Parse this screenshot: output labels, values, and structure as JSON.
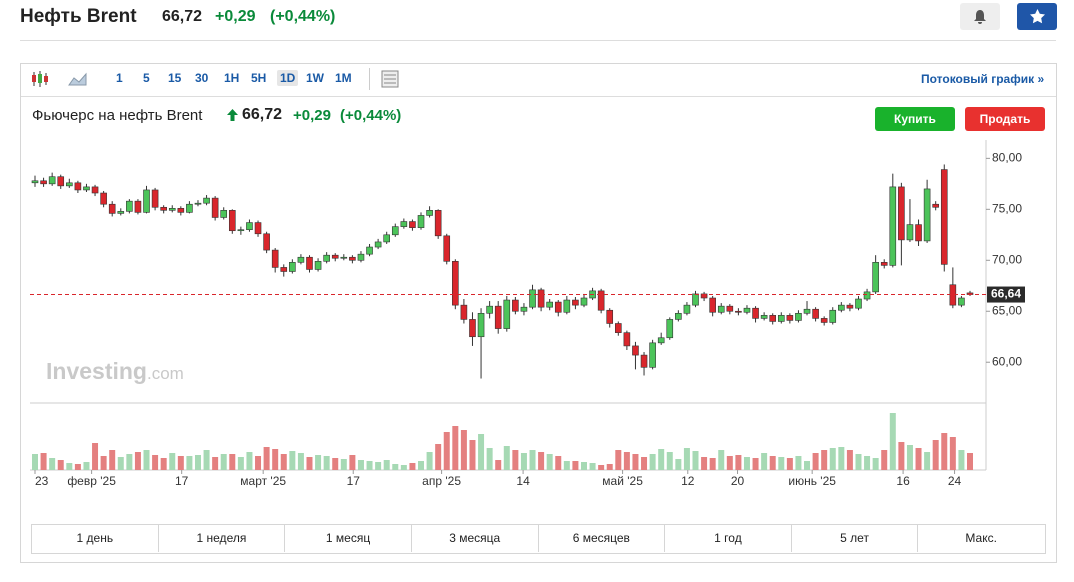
{
  "header": {
    "title": "Нефть Brent",
    "price": "66,72",
    "change": "+0,29",
    "change_pct": "(+0,44%)"
  },
  "toolbar": {
    "intervals": [
      "1",
      "5",
      "15",
      "30",
      "1H",
      "5H",
      "1D",
      "1W",
      "1M"
    ],
    "stream_link": "Потоковый график »"
  },
  "instrument": {
    "name": "Фьючерс на нефть Brent",
    "price": "66,72",
    "change": "+0,29",
    "change_pct": "(+0,44%)",
    "buy": "Купить",
    "sell": "Продать"
  },
  "watermark": {
    "brand": "Investing",
    "suffix": ".com"
  },
  "periods": [
    "1 день",
    "1 неделя",
    "1 месяц",
    "3 месяца",
    "6 месяцев",
    "1 год",
    "5 лет",
    "Макс."
  ],
  "chart_data": {
    "type": "candlestick",
    "open": [
      77.6,
      77.8,
      77.5,
      78.2,
      77.3,
      77.6,
      76.9,
      77.2,
      76.6,
      75.5,
      74.6,
      74.8,
      75.8,
      74.7,
      76.9,
      75.2,
      74.9,
      75.1,
      74.7,
      75.5,
      75.6,
      76.1,
      74.2,
      74.9,
      72.9,
      73.0,
      73.7,
      72.6,
      71.0,
      69.3,
      68.9,
      69.8,
      70.3,
      69.1,
      69.9,
      70.5,
      70.2,
      70.3,
      70.0,
      70.6,
      71.3,
      71.8,
      72.5,
      73.3,
      73.8,
      73.2,
      74.4,
      74.9,
      72.4,
      69.9,
      65.6,
      64.2,
      62.5,
      64.8,
      65.5,
      63.3,
      66.1,
      65.0,
      65.4,
      67.1,
      65.4,
      65.9,
      64.9,
      66.1,
      65.6,
      66.3,
      67.0,
      65.1,
      63.8,
      62.9,
      61.6,
      60.7,
      59.5,
      61.9,
      62.4,
      64.2,
      64.8,
      65.6,
      66.7,
      66.3,
      64.9,
      65.5,
      65.0,
      64.9,
      65.3,
      64.3,
      64.6,
      64.0,
      64.6,
      64.1,
      64.8,
      65.2,
      64.3,
      63.9,
      65.1,
      65.6,
      65.3,
      66.2,
      66.9,
      69.8,
      69.5,
      77.2,
      72.0,
      73.5,
      71.9,
      75.5,
      78.9,
      67.6,
      65.6,
      66.8
    ],
    "high": [
      78.3,
      78.1,
      78.6,
      78.4,
      78.0,
      77.8,
      77.5,
      77.4,
      76.8,
      75.8,
      75.1,
      76.0,
      76.0,
      77.3,
      77.1,
      75.4,
      75.4,
      75.3,
      75.8,
      75.9,
      76.4,
      76.3,
      75.2,
      75.0,
      73.3,
      74.0,
      73.9,
      72.8,
      71.2,
      69.6,
      70.1,
      70.6,
      70.5,
      70.2,
      70.8,
      70.7,
      70.6,
      70.5,
      70.9,
      71.6,
      72.1,
      72.8,
      73.6,
      74.1,
      74.0,
      74.7,
      75.3,
      75.0,
      72.6,
      70.1,
      66.2,
      64.9,
      65.3,
      66.0,
      66.0,
      66.5,
      66.4,
      65.8,
      67.6,
      67.3,
      66.2,
      66.1,
      66.5,
      66.4,
      66.7,
      67.3,
      67.2,
      65.3,
      64.0,
      63.1,
      62.0,
      61.0,
      62.2,
      62.9,
      64.4,
      65.1,
      65.9,
      67.0,
      66.9,
      66.5,
      65.8,
      65.7,
      65.3,
      65.6,
      65.5,
      64.9,
      64.8,
      64.9,
      64.8,
      65.1,
      66.0,
      65.4,
      64.5,
      65.4,
      65.9,
      65.8,
      66.5,
      67.2,
      70.5,
      70.1,
      78.5,
      77.6,
      76.0,
      74.0,
      77.9,
      75.8,
      79.4,
      69.3,
      66.5,
      67.0
    ],
    "low": [
      77.2,
      77.2,
      77.3,
      77.0,
      77.1,
      76.6,
      76.7,
      76.3,
      75.2,
      74.3,
      74.4,
      74.6,
      74.5,
      74.6,
      74.9,
      74.6,
      74.7,
      74.4,
      74.6,
      75.3,
      75.4,
      73.9,
      74.0,
      72.6,
      72.5,
      72.8,
      72.3,
      70.7,
      68.8,
      68.4,
      68.7,
      69.6,
      68.8,
      68.9,
      69.7,
      69.9,
      70.0,
      69.7,
      69.8,
      70.4,
      71.1,
      71.6,
      72.3,
      73.1,
      72.9,
      73.0,
      74.2,
      72.1,
      69.6,
      65.2,
      63.8,
      61.6,
      58.4,
      64.3,
      62.8,
      63.0,
      64.7,
      64.6,
      65.2,
      65.0,
      65.1,
      64.5,
      64.7,
      65.2,
      65.4,
      66.1,
      64.8,
      63.4,
      62.6,
      61.2,
      59.3,
      58.7,
      59.3,
      61.7,
      62.2,
      64.0,
      64.6,
      65.4,
      66.0,
      64.5,
      64.7,
      64.7,
      64.6,
      64.7,
      63.9,
      64.1,
      63.7,
      63.8,
      63.8,
      63.9,
      64.6,
      64.0,
      63.6,
      63.7,
      64.9,
      65.0,
      65.1,
      66.0,
      66.7,
      69.2,
      69.3,
      69.5,
      71.8,
      71.4,
      71.7,
      74.9,
      68.9,
      65.3,
      65.4,
      66.5
    ],
    "close": [
      77.8,
      77.5,
      78.2,
      77.3,
      77.6,
      76.9,
      77.2,
      76.6,
      75.5,
      74.6,
      74.8,
      75.8,
      74.7,
      76.9,
      75.2,
      74.9,
      75.1,
      74.7,
      75.5,
      75.6,
      76.1,
      74.2,
      74.9,
      72.9,
      73.0,
      73.7,
      72.6,
      71.0,
      69.3,
      68.9,
      69.8,
      70.3,
      69.1,
      69.9,
      70.5,
      70.2,
      70.3,
      70.0,
      70.6,
      71.3,
      71.8,
      72.5,
      73.3,
      73.8,
      73.2,
      74.4,
      74.9,
      72.4,
      69.9,
      65.6,
      64.2,
      62.5,
      64.8,
      65.5,
      63.3,
      66.1,
      65.0,
      65.4,
      67.1,
      65.4,
      65.9,
      64.9,
      66.1,
      65.6,
      66.3,
      67.0,
      65.1,
      63.8,
      62.9,
      61.6,
      60.7,
      59.5,
      61.9,
      62.4,
      64.2,
      64.8,
      65.6,
      66.7,
      66.3,
      64.9,
      65.5,
      65.0,
      64.9,
      65.3,
      64.3,
      64.6,
      64.0,
      64.6,
      64.1,
      64.8,
      65.2,
      64.3,
      63.9,
      65.1,
      65.6,
      65.3,
      66.2,
      66.9,
      69.8,
      69.5,
      77.2,
      72.0,
      73.5,
      71.9,
      77.0,
      75.2,
      69.6,
      65.6,
      66.3,
      66.64
    ],
    "volume": [
      16,
      17,
      12,
      10,
      7,
      6,
      8,
      27,
      14,
      20,
      13,
      16,
      18,
      20,
      15,
      12,
      17,
      14,
      14,
      15,
      20,
      13,
      16,
      16,
      13,
      18,
      14,
      23,
      21,
      16,
      19,
      17,
      13,
      15,
      14,
      12,
      11,
      15,
      10,
      9,
      8,
      10,
      6,
      5,
      7,
      9,
      18,
      26,
      38,
      44,
      40,
      30,
      36,
      22,
      10,
      24,
      20,
      17,
      20,
      18,
      16,
      14,
      9,
      9,
      8,
      7,
      5,
      6,
      20,
      18,
      16,
      13,
      16,
      21,
      18,
      11,
      22,
      19,
      13,
      12,
      20,
      14,
      15,
      13,
      12,
      17,
      14,
      13,
      12,
      14,
      9,
      17,
      20,
      22,
      23,
      20,
      16,
      14,
      12,
      20,
      57,
      28,
      25,
      22,
      18,
      30,
      37,
      33,
      20,
      17
    ],
    "xlim": [
      0,
      109
    ],
    "xticks": [
      {
        "value": 0,
        "label": "23"
      },
      {
        "value": 6.6,
        "label": "февр '25"
      },
      {
        "value": 17.1,
        "label": "17"
      },
      {
        "value": 26.6,
        "label": "март '25"
      },
      {
        "value": 37.1,
        "label": "17"
      },
      {
        "value": 47.4,
        "label": "апр '25"
      },
      {
        "value": 56.9,
        "label": "14"
      },
      {
        "value": 68.5,
        "label": "май '25"
      },
      {
        "value": 76.1,
        "label": "12"
      },
      {
        "value": 81.9,
        "label": "20"
      },
      {
        "value": 90.6,
        "label": "июнь '25"
      },
      {
        "value": 101.2,
        "label": "16"
      },
      {
        "value": 107.2,
        "label": "24"
      }
    ],
    "ylim": [
      56,
      81.8
    ],
    "yticks": [
      {
        "value": 60,
        "label": "60,00"
      },
      {
        "value": 65,
        "label": "65,00"
      },
      {
        "value": 70,
        "label": "70,00"
      },
      {
        "value": 75,
        "label": "75,00"
      },
      {
        "value": 80,
        "label": "80,00"
      }
    ],
    "vlim": [
      0,
      60
    ],
    "last": {
      "value": 66.64,
      "label": "66,64"
    },
    "up_color": "#4cc45a",
    "down_color": "#d9262c",
    "up_volume_color": "#a6d9b4",
    "down_volume_color": "#e48080",
    "grid": false
  }
}
